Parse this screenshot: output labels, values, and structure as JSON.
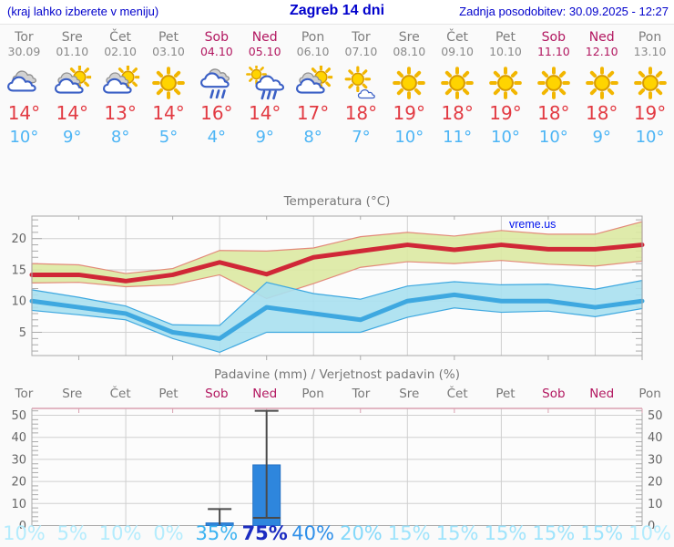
{
  "header": {
    "left_note": "(kraj lahko izberete v meniju)",
    "title": "Zagreb 14 dni",
    "updated": "Zadnja posodobitev: 30.09.2025 - 12:27"
  },
  "watermark": {
    "label": "vreme.us",
    "color": "#0013ee"
  },
  "colors": {
    "header_blue": "#0000cc",
    "day_gray": "#7d7d7d",
    "weekend": "#b21760",
    "high_temp_red": "#e23a42",
    "low_temp_blue": "#4db5f5",
    "max_line_red": "#d02737",
    "min_line_blue": "#3ea8e0",
    "max_band_green": "#dcE9a2",
    "min_band_blue": "#a8e0f0",
    "bar_blue": "#2e86dd",
    "precip_top_border_pink": "#d9a0b0"
  },
  "days": [
    {
      "name": "Tor",
      "date": "30.09",
      "weekend": false,
      "icon": "cloudy",
      "high": "14°",
      "low": "10°",
      "prob": "10%",
      "prob_color": "#b4ecfd",
      "prob_bold": false
    },
    {
      "name": "Sre",
      "date": "01.10",
      "weekend": false,
      "icon": "suncloud",
      "high": "14°",
      "low": "9°",
      "prob": "5%",
      "prob_color": "#b4ecfd",
      "prob_bold": false
    },
    {
      "name": "Čet",
      "date": "02.10",
      "weekend": false,
      "icon": "suncloud",
      "high": "13°",
      "low": "8°",
      "prob": "10%",
      "prob_color": "#b4ecfd",
      "prob_bold": false
    },
    {
      "name": "Pet",
      "date": "03.10",
      "weekend": false,
      "icon": "sunny",
      "high": "14°",
      "low": "5°",
      "prob": "0%",
      "prob_color": "#b4ecfd",
      "prob_bold": false
    },
    {
      "name": "Sob",
      "date": "04.10",
      "weekend": true,
      "icon": "rain",
      "high": "16°",
      "low": "4°",
      "prob": "35%",
      "prob_color": "#3cb3f1",
      "prob_bold": false
    },
    {
      "name": "Ned",
      "date": "05.10",
      "weekend": true,
      "icon": "sunrain",
      "high": "14°",
      "low": "9°",
      "prob": "75%",
      "prob_color": "#1b2cc1",
      "prob_bold": true
    },
    {
      "name": "Pon",
      "date": "06.10",
      "weekend": false,
      "icon": "suncloud",
      "high": "17°",
      "low": "8°",
      "prob": "40%",
      "prob_color": "#2e8fe9",
      "prob_bold": false
    },
    {
      "name": "Tor",
      "date": "07.10",
      "weekend": false,
      "icon": "sunsmallcloud",
      "high": "18°",
      "low": "7°",
      "prob": "20%",
      "prob_color": "#84d9fa",
      "prob_bold": false
    },
    {
      "name": "Sre",
      "date": "08.10",
      "weekend": false,
      "icon": "sunny",
      "high": "19°",
      "low": "10°",
      "prob": "15%",
      "prob_color": "#9fe4fc",
      "prob_bold": false
    },
    {
      "name": "Čet",
      "date": "09.10",
      "weekend": false,
      "icon": "sunny",
      "high": "18°",
      "low": "11°",
      "prob": "15%",
      "prob_color": "#9fe4fc",
      "prob_bold": false
    },
    {
      "name": "Pet",
      "date": "10.10",
      "weekend": false,
      "icon": "sunny",
      "high": "19°",
      "low": "10°",
      "prob": "15%",
      "prob_color": "#9fe4fc",
      "prob_bold": false
    },
    {
      "name": "Sob",
      "date": "11.10",
      "weekend": true,
      "icon": "sunny",
      "high": "18°",
      "low": "10°",
      "prob": "15%",
      "prob_color": "#9fe4fc",
      "prob_bold": false
    },
    {
      "name": "Ned",
      "date": "12.10",
      "weekend": true,
      "icon": "sunny",
      "high": "18°",
      "low": "9°",
      "prob": "15%",
      "prob_color": "#9fe4fc",
      "prob_bold": false
    },
    {
      "name": "Pon",
      "date": "13.10",
      "weekend": false,
      "icon": "sunny",
      "high": "19°",
      "low": "10°",
      "prob": "10%",
      "prob_color": "#b4ecfd",
      "prob_bold": false
    }
  ],
  "chart_data": [
    {
      "type": "line",
      "title": "Temperatura (°C)",
      "xlabel": "",
      "ylabel": "",
      "ylim": [
        1.3,
        23.6
      ],
      "yticks": [
        5,
        10,
        15,
        20
      ],
      "grid": true,
      "x_categories": [
        "Tor 30.09",
        "Sre 01.10",
        "Čet 02.10",
        "Pet 03.10",
        "Sob 04.10",
        "Ned 05.10",
        "Pon 06.10",
        "Tor 07.10",
        "Sre 08.10",
        "Čet 09.10",
        "Pet 10.10",
        "Sob 11.10",
        "Ned 12.10",
        "Pon 13.10"
      ],
      "series": [
        {
          "name": "max-range-upper",
          "role": "band-upper",
          "pair": "max",
          "color": "#e38a7a",
          "fill": "#dcE9a2",
          "values": [
            16.0,
            15.8,
            14.4,
            15.2,
            18.1,
            18.0,
            18.5,
            20.3,
            21.0,
            20.4,
            21.3,
            20.7,
            20.7,
            22.7
          ]
        },
        {
          "name": "max-range-lower",
          "role": "band-lower",
          "pair": "max",
          "color": "#e38a7a",
          "values": [
            12.9,
            13.0,
            12.3,
            12.6,
            14.2,
            10.4,
            12.8,
            15.4,
            16.3,
            16.0,
            16.5,
            15.9,
            15.6,
            16.4
          ]
        },
        {
          "name": "min-range-upper",
          "role": "band-upper",
          "pair": "min",
          "color": "#3ea8e0",
          "fill": "#a8e0f0",
          "values": [
            11.8,
            10.6,
            9.2,
            6.2,
            6.1,
            13.0,
            11.2,
            10.3,
            12.4,
            13.1,
            12.6,
            12.7,
            11.9,
            13.3
          ]
        },
        {
          "name": "min-range-lower",
          "role": "band-lower",
          "pair": "min",
          "color": "#3ea8e0",
          "values": [
            8.5,
            7.8,
            7.0,
            4.0,
            1.8,
            5.0,
            5.0,
            5.0,
            7.4,
            8.9,
            8.2,
            8.4,
            7.5,
            8.8
          ]
        },
        {
          "name": "max-temperature",
          "role": "line",
          "color": "#d02737",
          "width": 5,
          "values": [
            14.2,
            14.2,
            13.2,
            14.2,
            16.2,
            14.3,
            17.0,
            18.0,
            19.0,
            18.2,
            19.0,
            18.3,
            18.3,
            19.0
          ]
        },
        {
          "name": "min-temperature",
          "role": "line",
          "color": "#3ea8e0",
          "width": 5,
          "values": [
            10,
            9,
            8,
            5,
            4,
            9,
            8,
            7,
            10,
            11,
            10,
            10,
            9,
            10
          ]
        }
      ]
    },
    {
      "type": "bar",
      "title": "Padavine (mm) / Verjetnost padavin (%)",
      "xlabel": "",
      "ylabel": "",
      "ylim": [
        0,
        53.5
      ],
      "yticks": [
        0,
        10,
        20,
        30,
        40,
        50
      ],
      "grid": true,
      "bar_color": "#2e86dd",
      "categories": [
        "Tor",
        "Sre",
        "Čet",
        "Pet",
        "Sob",
        "Ned",
        "Pon",
        "Tor",
        "Sre",
        "Čet",
        "Pet",
        "Sob",
        "Ned",
        "Pon"
      ],
      "values": [
        0,
        0,
        0,
        0,
        1.2,
        27.5,
        0,
        0,
        0,
        0,
        0,
        0,
        0,
        0
      ],
      "whiskers": [
        {
          "day_index": 4,
          "low": 0,
          "high": 7.5,
          "median": null
        },
        {
          "day_index": 5,
          "low": 3.5,
          "high": 52,
          "median": 3.5
        }
      ],
      "probabilities": [
        "10%",
        "5%",
        "10%",
        "0%",
        "35%",
        "75%",
        "40%",
        "20%",
        "15%",
        "15%",
        "15%",
        "15%",
        "15%",
        "10%"
      ]
    }
  ]
}
